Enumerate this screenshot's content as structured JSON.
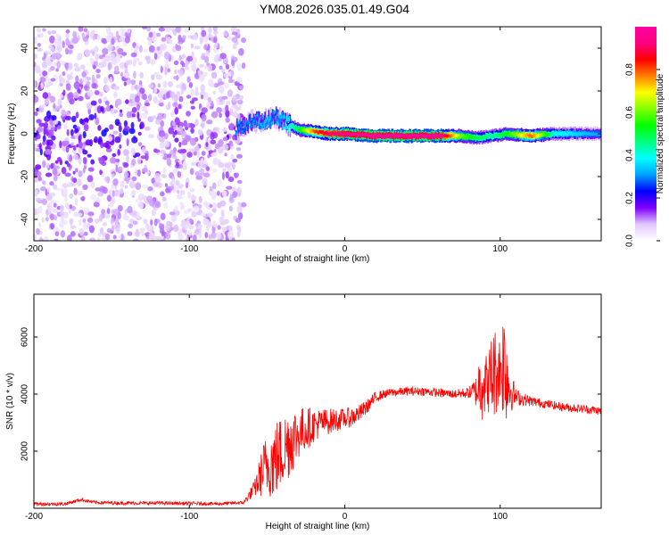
{
  "title": "YM08.2026.035.01.49.G04",
  "chart_data": [
    {
      "type": "heatmap",
      "xlabel": "Height of straight line (km)",
      "ylabel": "Frequency (Hz)",
      "xlim": [
        -200,
        165
      ],
      "ylim": [
        -50,
        50
      ],
      "xticks": [
        -200,
        -100,
        0,
        100
      ],
      "yticks": [
        -40,
        -20,
        0,
        20,
        40
      ],
      "colorbar": {
        "label": "Normalized spectral amplitude",
        "range": [
          0,
          1
        ],
        "ticks": [
          0.0,
          0.2,
          0.4,
          0.6,
          0.8
        ],
        "colors": [
          "#ffffff",
          "#e0c8ff",
          "#8000ff",
          "#0000ff",
          "#00a0ff",
          "#00ffff",
          "#00ff80",
          "#00ff00",
          "#80ff00",
          "#ffff00",
          "#ff8000",
          "#ff0000",
          "#ff0080",
          "#ff00a0"
        ]
      },
      "noise_region": {
        "x_from": -200,
        "x_to": -65,
        "amplitude": 0.1
      },
      "ridge": [
        {
          "x": -70,
          "f": 2,
          "amp": 0.3
        },
        {
          "x": -60,
          "f": 6,
          "amp": 0.3
        },
        {
          "x": -50,
          "f": 6,
          "amp": 0.35
        },
        {
          "x": -45,
          "f": 8,
          "amp": 0.3
        },
        {
          "x": -40,
          "f": 6,
          "amp": 0.35
        },
        {
          "x": -30,
          "f": 2,
          "amp": 0.5
        },
        {
          "x": -20,
          "f": 1,
          "amp": 0.8
        },
        {
          "x": -10,
          "f": 0,
          "amp": 0.9
        },
        {
          "x": 0,
          "f": 0,
          "amp": 0.95
        },
        {
          "x": 20,
          "f": -1,
          "amp": 1.0
        },
        {
          "x": 40,
          "f": -1,
          "amp": 1.0
        },
        {
          "x": 60,
          "f": -1,
          "amp": 1.0
        },
        {
          "x": 75,
          "f": -1,
          "amp": 0.6
        },
        {
          "x": 85,
          "f": -2,
          "amp": 0.5
        },
        {
          "x": 95,
          "f": -1,
          "amp": 0.45
        },
        {
          "x": 105,
          "f": 0,
          "amp": 0.55
        },
        {
          "x": 120,
          "f": -1,
          "amp": 0.8
        },
        {
          "x": 135,
          "f": 0,
          "amp": 0.4
        },
        {
          "x": 150,
          "f": 0,
          "amp": 0.35
        },
        {
          "x": 165,
          "f": 0,
          "amp": 0.3
        }
      ]
    },
    {
      "type": "line",
      "xlabel": "Height of straight line (km)",
      "ylabel": "SNR (10 * v/v)",
      "xlim": [
        -200,
        165
      ],
      "ylim": [
        0,
        7500
      ],
      "xticks": [
        -200,
        -100,
        0,
        100
      ],
      "yticks": [
        2000,
        4000,
        6000
      ],
      "color": "#ff0000",
      "series": [
        {
          "x": [
            -200,
            -180,
            -170,
            -160,
            -140,
            -120,
            -100,
            -80,
            -65,
            -58,
            -52,
            -45,
            -40,
            -35,
            -30,
            -25,
            -20,
            -15,
            -10,
            -5,
            0,
            5,
            10,
            15,
            20,
            25,
            30,
            40,
            50,
            60,
            70,
            80,
            85,
            88,
            92,
            95,
            100,
            103,
            106,
            110,
            120,
            130,
            140,
            150,
            160,
            165
          ],
          "y": [
            150,
            150,
            300,
            200,
            180,
            180,
            170,
            160,
            200,
            700,
            1400,
            1700,
            2000,
            2400,
            2600,
            2800,
            2900,
            3000,
            3050,
            3100,
            3150,
            3200,
            3350,
            3600,
            3900,
            4000,
            4050,
            4100,
            4100,
            4050,
            4000,
            4050,
            4100,
            4600,
            4300,
            4700,
            4900,
            5200,
            4200,
            3900,
            3750,
            3650,
            3550,
            3500,
            3450,
            3400
          ],
          "noise": [
            60,
            60,
            60,
            60,
            60,
            60,
            60,
            60,
            60,
            300,
            1000,
            1400,
            1300,
            1300,
            900,
            800,
            600,
            500,
            450,
            400,
            350,
            350,
            300,
            250,
            200,
            150,
            150,
            150,
            150,
            150,
            150,
            200,
            600,
            1600,
            900,
            1800,
            1200,
            2400,
            900,
            300,
            180,
            150,
            150,
            150,
            150,
            150
          ]
        }
      ]
    }
  ]
}
